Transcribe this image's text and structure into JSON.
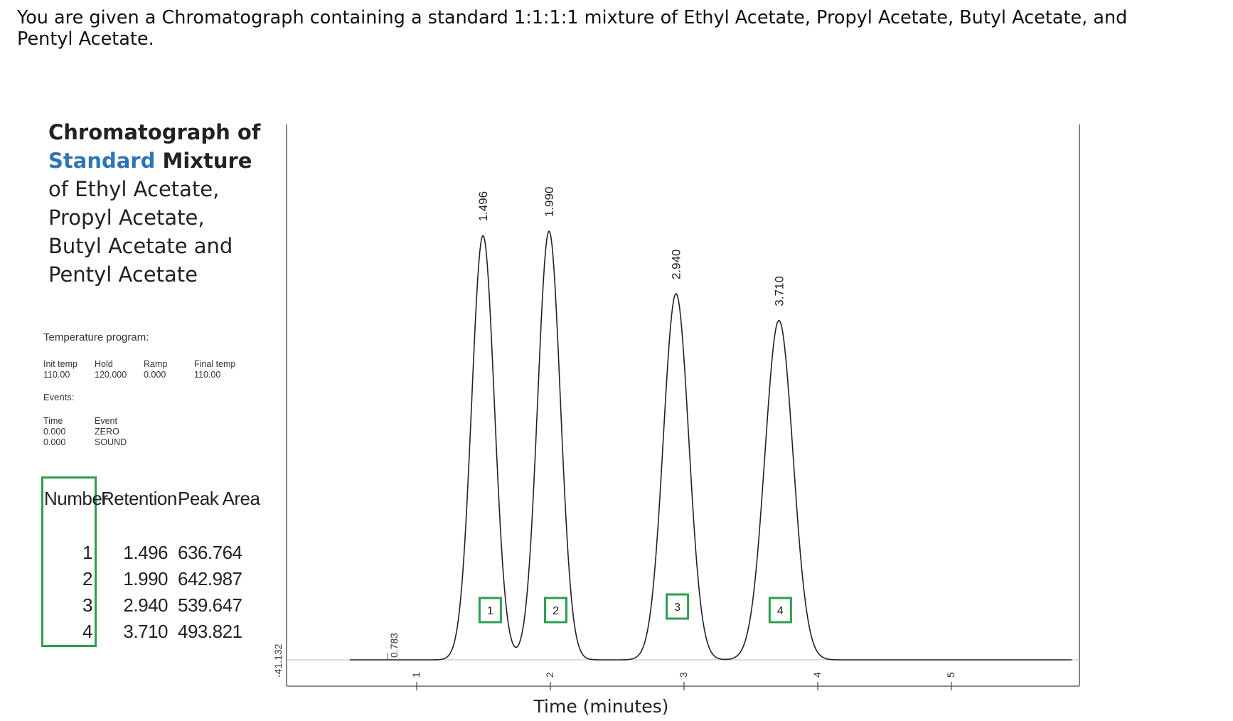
{
  "question": "You are given a Chromatograph containing a standard 1:1:1:1 mixture of Ethyl Acetate, Propyl Acetate, Butyl Acetate, and Pentyl Acetate.",
  "heading": {
    "line1": "Chromatograph of",
    "line2_blue": "Standard",
    "line2_rest": " Mixture",
    "line3": "of Ethyl Acetate,",
    "line4": "Propyl Acetate,",
    "line5": "Butyl Acetate and",
    "line6": "Pentyl Acetate"
  },
  "temperature_program": {
    "title": "Temperature program:",
    "columns": [
      {
        "label": "Init temp",
        "value": "110.00"
      },
      {
        "label": "Hold",
        "value": "120.000"
      },
      {
        "label": "Ramp",
        "value": "0.000"
      },
      {
        "label": "Final temp",
        "value": "110.00"
      }
    ]
  },
  "events": {
    "title": "Events:",
    "time_label": "Time",
    "event_label": "Event",
    "rows": [
      {
        "time": "0.000",
        "event": "ZERO"
      },
      {
        "time": "0.000",
        "event": "SOUND"
      }
    ]
  },
  "peak_table": {
    "headers": {
      "number": "Number",
      "retention": "Retention",
      "area": "Peak Area"
    },
    "rows": [
      {
        "number": "1",
        "retention": "1.496",
        "area": "636.764"
      },
      {
        "number": "2",
        "retention": "1.990",
        "area": "642.987"
      },
      {
        "number": "3",
        "retention": "2.940",
        "area": "539.647"
      },
      {
        "number": "4",
        "retention": "3.710",
        "area": "493.821"
      }
    ]
  },
  "chart_data": {
    "type": "line",
    "xlabel": "Time (minutes)",
    "xlim": [
      0.5,
      5.9
    ],
    "x_ticks": [
      "1",
      "2",
      "3",
      "4",
      "5"
    ],
    "y_axis_label": "-41.132",
    "start_marker": "0.783",
    "peak_labels": [
      "1.496",
      "1.990",
      "2.940",
      "3.710"
    ],
    "peak_box_labels": [
      "1",
      "2",
      "3",
      "4"
    ],
    "peaks": [
      {
        "time": 1.496,
        "height": 0.95,
        "width": 0.085
      },
      {
        "time": 1.99,
        "height": 0.96,
        "width": 0.085
      },
      {
        "time": 2.94,
        "height": 0.82,
        "width": 0.095
      },
      {
        "time": 3.71,
        "height": 0.76,
        "width": 0.105
      }
    ],
    "colors": {
      "trace": "#222222",
      "axis": "#444444",
      "box": "#2e9e4f"
    }
  }
}
